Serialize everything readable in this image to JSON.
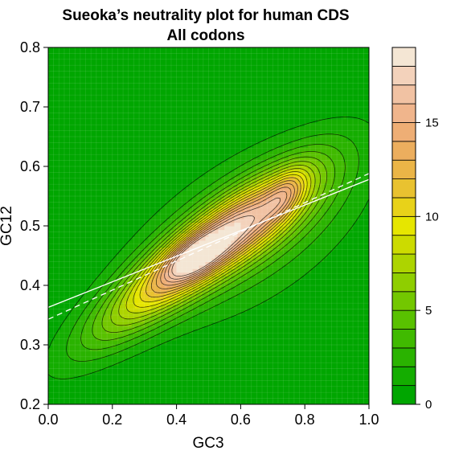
{
  "chart_data": {
    "type": "heatmap",
    "title": "Sueoka’s neutrality plot for human CDS",
    "subtitle": "All codons",
    "xlabel": "GC3",
    "ylabel": "GC12",
    "xlim": [
      0.0,
      1.0
    ],
    "ylim": [
      0.2,
      0.8
    ],
    "x_ticks": [
      "0.0",
      "0.2",
      "0.4",
      "0.6",
      "0.8",
      "1.0"
    ],
    "y_ticks": [
      "0.2",
      "0.3",
      "0.4",
      "0.5",
      "0.6",
      "0.7",
      "0.8"
    ],
    "grid": true,
    "colorbar": {
      "min": 0,
      "max": 19,
      "step": 1,
      "ticks": [
        "0",
        "5",
        "10",
        "15"
      ],
      "tick_values": [
        0,
        5,
        10,
        15
      ],
      "placement": "right",
      "colors": [
        "#00A600",
        "#14AD00",
        "#2AB300",
        "#40BA00",
        "#59C100",
        "#73C700",
        "#8FCE00",
        "#ADD400",
        "#CCDB00",
        "#E6E600",
        "#E8D219",
        "#E9C230",
        "#EBB547",
        "#ECAE5E",
        "#EEAE75",
        "#F0B58C",
        "#F1C2A3",
        "#F3D2BB",
        "#F4E6D4"
      ]
    },
    "density_components": [
      {
        "x": 0.45,
        "y": 0.445,
        "sx": 0.22,
        "sy": 0.038,
        "angle_deg": 22,
        "peak": 11.5
      },
      {
        "x": 0.64,
        "y": 0.505,
        "sx": 0.16,
        "sy": 0.04,
        "angle_deg": 18,
        "peak": 6.5
      },
      {
        "x": 0.45,
        "y": 0.445,
        "sx": 0.065,
        "sy": 0.022,
        "angle_deg": 15,
        "peak": 4.5
      },
      {
        "x": 0.62,
        "y": 0.49,
        "sx": 0.26,
        "sy": 0.085,
        "angle_deg": 15,
        "peak": 3.0
      },
      {
        "x": 0.74,
        "y": 0.555,
        "sx": 0.05,
        "sy": 0.022,
        "angle_deg": 25,
        "peak": 3.8
      }
    ],
    "contour_levels": [
      1,
      2,
      3,
      4,
      5,
      6,
      7,
      8,
      9,
      10,
      11,
      12,
      13,
      14,
      15,
      16,
      17
    ],
    "series": [
      {
        "type": "line",
        "style": "solid",
        "color": "#ffffff",
        "x": [
          0.0,
          1.0
        ],
        "y": [
          0.363,
          0.578
        ]
      },
      {
        "type": "line",
        "style": "dashed",
        "color": "#ffffff",
        "x": [
          0.0,
          1.0
        ],
        "y": [
          0.343,
          0.588
        ]
      }
    ]
  }
}
